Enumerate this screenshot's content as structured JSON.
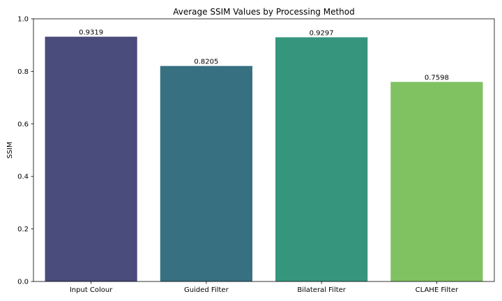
{
  "chart_data": {
    "type": "bar",
    "title": "Average SSIM Values by Processing Method",
    "xlabel": "",
    "ylabel": "SSIM",
    "categories": [
      "Input Colour",
      "Guided Filter",
      "Bilateral Filter",
      "CLAHE Filter"
    ],
    "values": [
      0.9319,
      0.8205,
      0.9297,
      0.7598
    ],
    "value_labels": [
      "0.9319",
      "0.8205",
      "0.9297",
      "0.7598"
    ],
    "colors": [
      "#4a4c7c",
      "#377181",
      "#35967d",
      "#80c262"
    ],
    "ylim": [
      0,
      1.0
    ],
    "yticks": [
      "0.0",
      "0.2",
      "0.4",
      "0.6",
      "0.8",
      "1.0"
    ],
    "grid": false,
    "legend": "none"
  }
}
